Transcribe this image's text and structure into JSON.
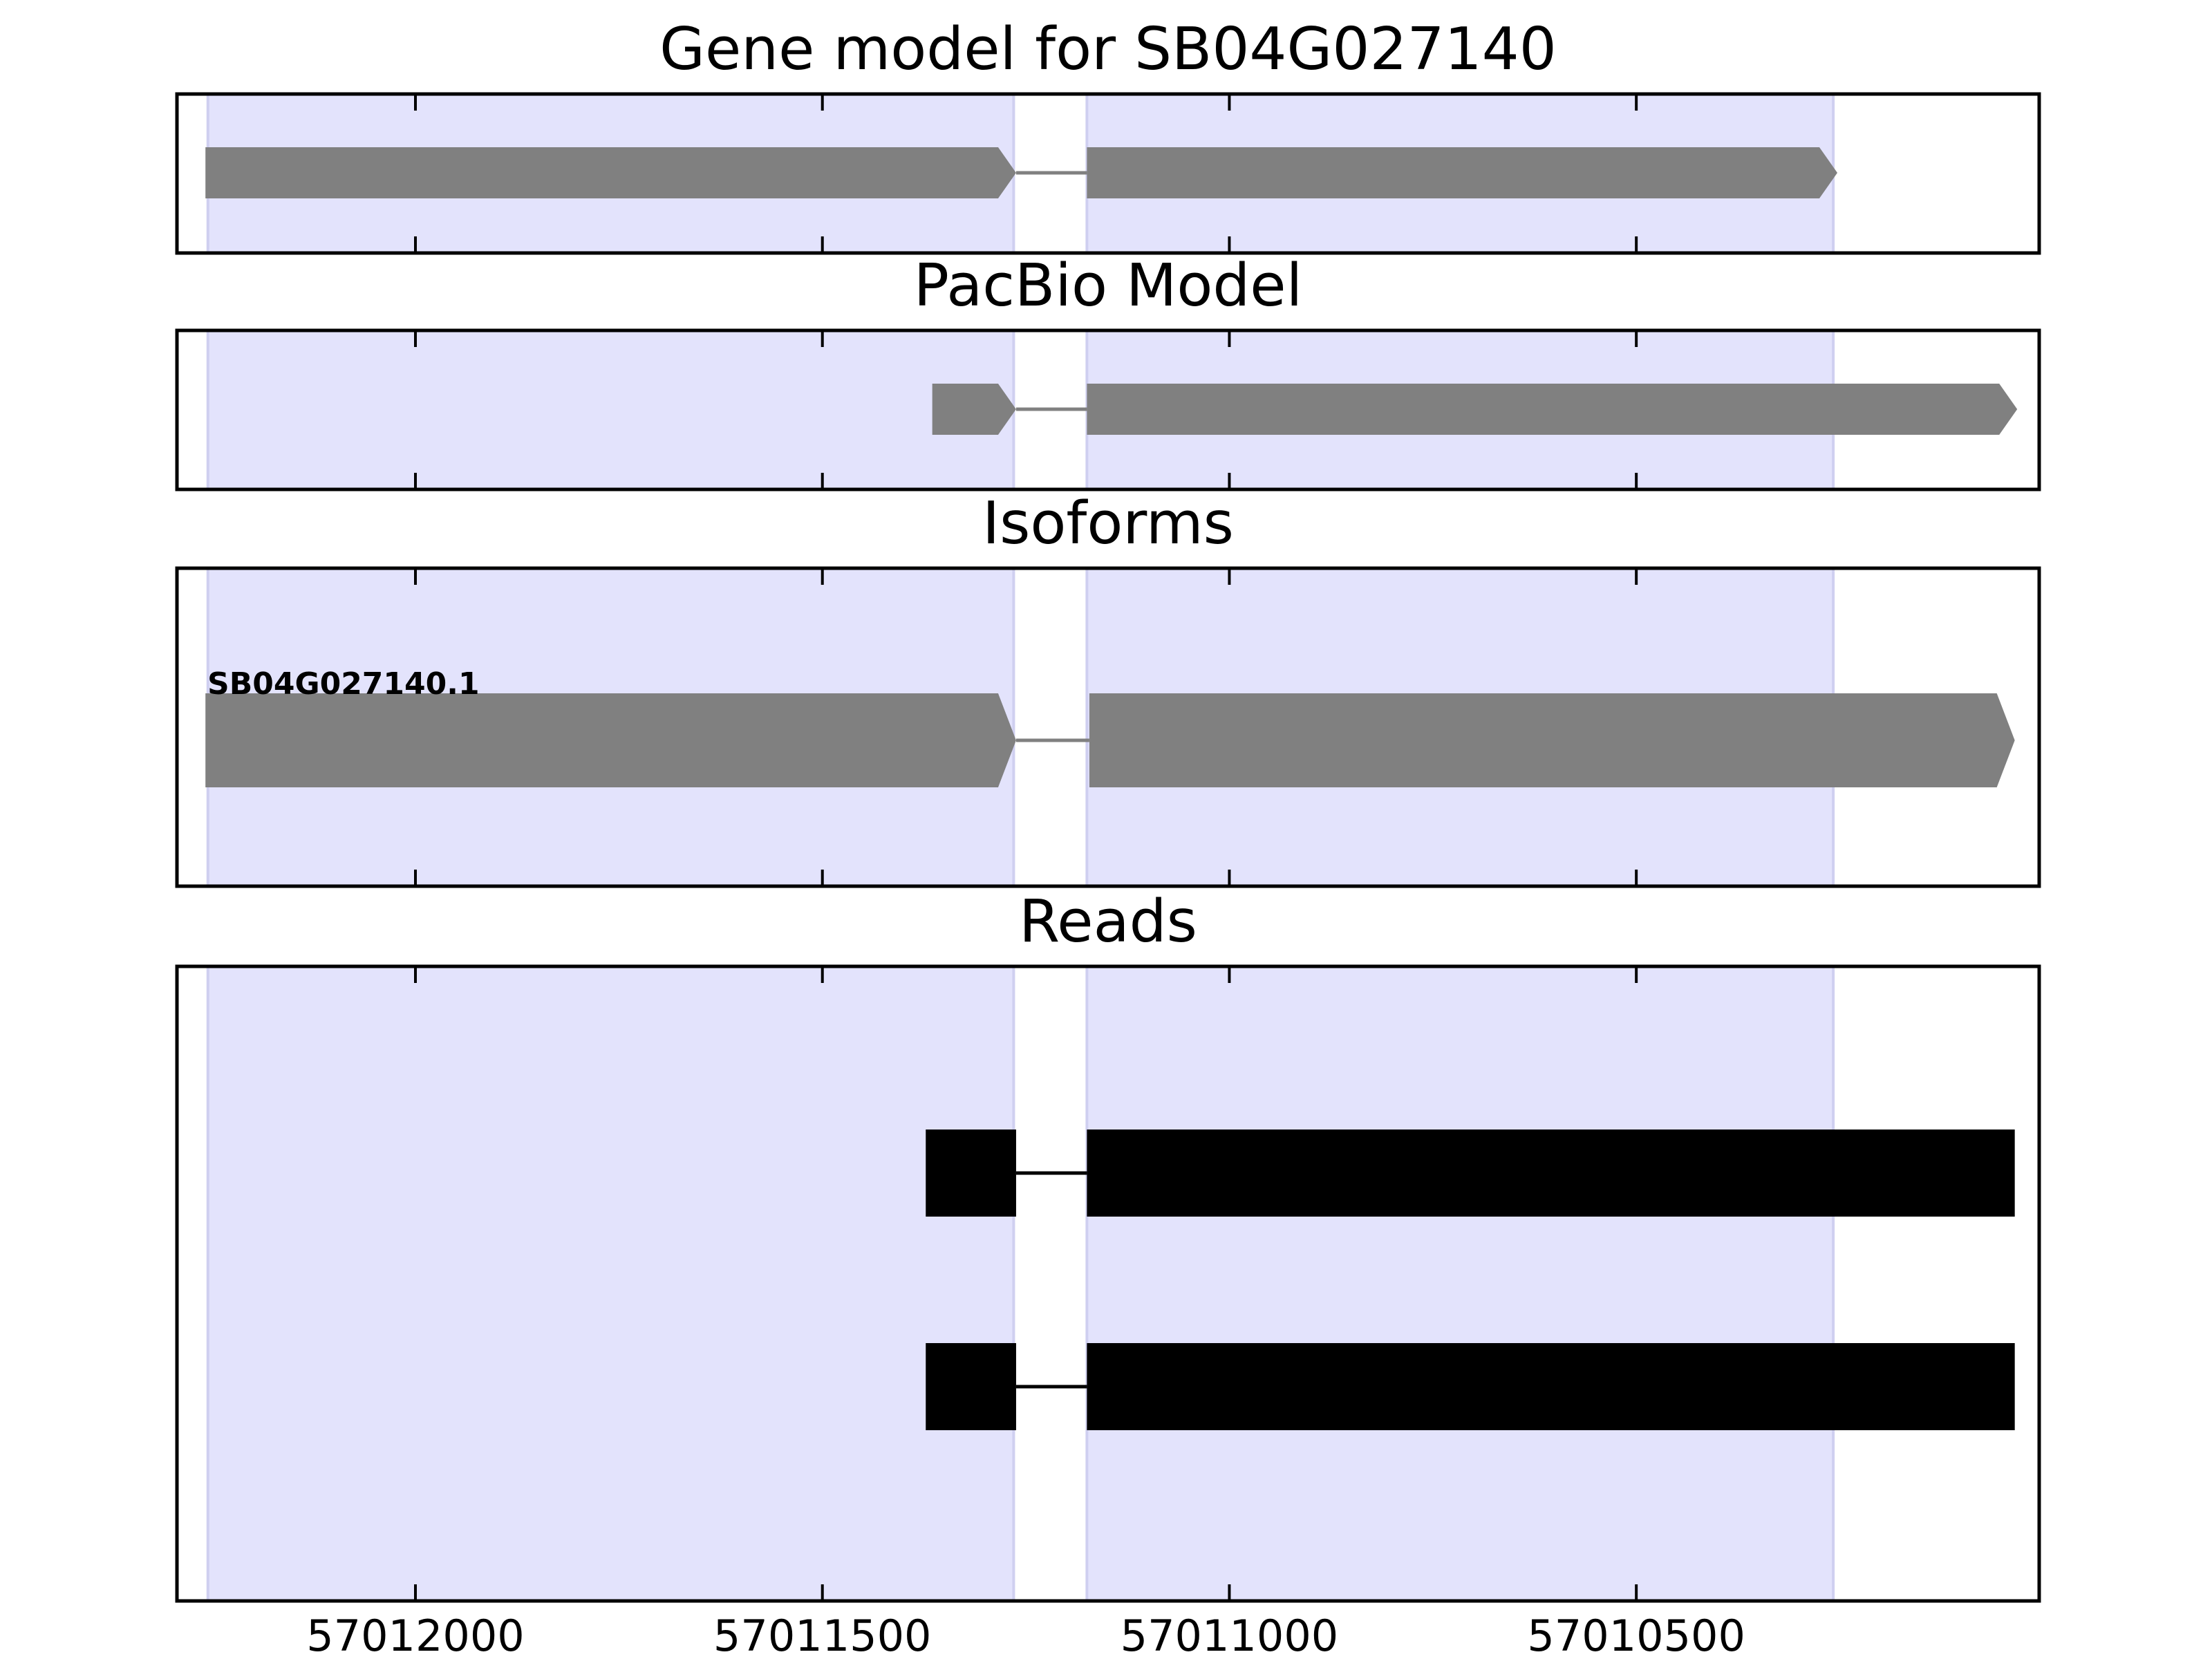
{
  "chart_data": {
    "type": "gene-model",
    "xlim": [
      57012293,
      57010005
    ],
    "x_inverted": true,
    "xticks": [
      57012000,
      57011500,
      57011000,
      57010500
    ],
    "xtick_labels": [
      "57012000",
      "57011500",
      "57011000",
      "57010500"
    ],
    "colors": {
      "exon_highlight": "#e3e3fc",
      "highlight_edge": "#cfcff0",
      "feature": "#808080",
      "read": "#000000",
      "axes": "#000000"
    },
    "highlight_regions": [
      {
        "start": 57012255,
        "end": 57011265
      },
      {
        "start": 57011175,
        "end": 57010258
      }
    ],
    "panels": [
      {
        "key": "gene_model",
        "title": "Gene model for SB04G027140",
        "features": [
          {
            "label": "",
            "style": "arrow",
            "exons": [
              [
                57012258,
                57011262
              ],
              [
                57011175,
                57010253
              ]
            ]
          }
        ]
      },
      {
        "key": "pacbio",
        "title": "PacBio Model",
        "features": [
          {
            "label": "",
            "style": "arrow",
            "exons": [
              [
                57011365,
                57011262
              ],
              [
                57011175,
                57010032
              ]
            ]
          }
        ]
      },
      {
        "key": "isoforms",
        "title": "Isoforms",
        "features": [
          {
            "label": "SB04G027140.1",
            "style": "arrow",
            "exons": [
              [
                57012258,
                57011262
              ],
              [
                57011172,
                57010035
              ]
            ]
          }
        ]
      },
      {
        "key": "reads",
        "title": "Reads",
        "features": [
          {
            "label": "",
            "style": "block",
            "exons": [
              [
                57011373,
                57011262
              ],
              [
                57011175,
                57010035
              ]
            ]
          },
          {
            "label": "",
            "style": "block",
            "exons": [
              [
                57011373,
                57011262
              ],
              [
                57011175,
                57010035
              ]
            ]
          }
        ]
      }
    ]
  }
}
